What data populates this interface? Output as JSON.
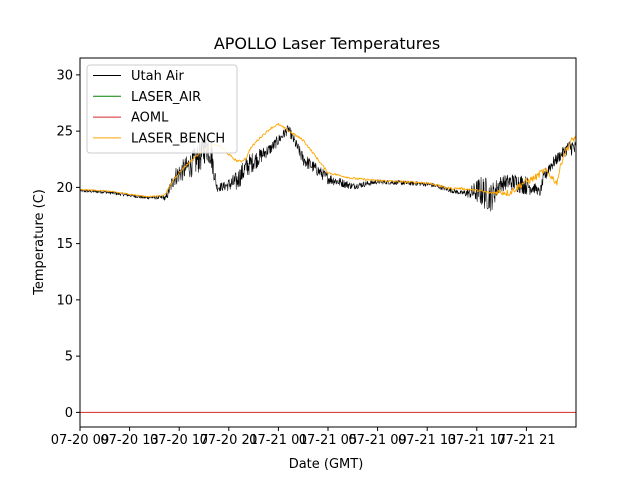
{
  "chart_data": {
    "type": "line",
    "title": "APOLLO Laser Temperatures",
    "xlabel": "Date (GMT)",
    "ylabel": "Temperature (C)",
    "ylim": [
      -1.3,
      31.5
    ],
    "xlim": [
      0,
      100
    ],
    "yticks": [
      0,
      5,
      10,
      15,
      20,
      25,
      30
    ],
    "x_tick_positions": [
      0,
      10,
      20,
      30,
      40,
      50,
      60,
      70,
      80,
      90
    ],
    "x_tick_labels": [
      "07-20 09",
      "07-20 13",
      "07-20 17",
      "07-20 21",
      "07-21 01",
      "07-21 05",
      "07-21 09",
      "07-21 13",
      "07-21 17",
      "07-21 21"
    ],
    "legend": [
      "Utah Air",
      "LASER_AIR",
      "AOML",
      "LASER_BENCH"
    ],
    "legend_position": "upper-left",
    "series": [
      {
        "name": "Utah Air",
        "color": "#000000",
        "noisy": true,
        "x": [
          0,
          5,
          10,
          13,
          15,
          16.9,
          17.3,
          19,
          21,
          23.5,
          24.5,
          25.4,
          26.3,
          27.6,
          29.2,
          31.5,
          33.7,
          35.6,
          37,
          38.6,
          40,
          42,
          45,
          50,
          55,
          60,
          65,
          70,
          72,
          73.5,
          75,
          76.9,
          78.6,
          80.6,
          81.7,
          82.9,
          84.6,
          86.5,
          88.5,
          90.5,
          91.9,
          92.7,
          93.5,
          94.6,
          96.1,
          97.4,
          98.3,
          99.2,
          100
        ],
        "y": [
          19.7,
          19.6,
          19.3,
          19.1,
          19.1,
          19.1,
          19,
          20.9,
          21.6,
          22.4,
          22.9,
          23.8,
          23.3,
          20,
          20.1,
          20.5,
          21.9,
          22.5,
          23,
          23.5,
          24.2,
          25.2,
          22.5,
          20.8,
          20.1,
          20.5,
          20.4,
          20.3,
          20.1,
          19.9,
          19.7,
          19.5,
          19.5,
          19.7,
          19.5,
          19.1,
          20.3,
          20.5,
          20.4,
          20.1,
          19.9,
          19.5,
          20.8,
          21.8,
          22.5,
          23.1,
          23.5,
          23.6,
          23.3
        ],
        "noise_amp": [
          0.15,
          0.15,
          0.15,
          0.15,
          0.15,
          0.2,
          0.3,
          0.8,
          1,
          1.3,
          1.4,
          1.5,
          1.5,
          0.4,
          0.4,
          0.9,
          1,
          0.8,
          0.6,
          0.5,
          0.5,
          0.4,
          0.6,
          0.5,
          0.3,
          0.2,
          0.2,
          0.2,
          0.2,
          0.2,
          0.2,
          0.2,
          0.5,
          1.3,
          1.5,
          1.3,
          0.7,
          0.7,
          0.9,
          0.8,
          0.4,
          0.4,
          0.6,
          0.6,
          0.5,
          0.5,
          0.6,
          0.8,
          0.8
        ]
      },
      {
        "name": "LASER_AIR",
        "color": "#008000",
        "noisy": false,
        "x": [],
        "y": []
      },
      {
        "name": "AOML",
        "color": "#d62728",
        "noisy": false,
        "x": [
          0,
          100
        ],
        "y": [
          0,
          0
        ]
      },
      {
        "name": "LASER_BENCH",
        "color": "#ffa500",
        "noisy": false,
        "x": [
          0,
          5,
          10,
          13,
          15,
          16.9,
          17.3,
          19,
          21,
          23,
          24.5,
          25.6,
          27.5,
          28.7,
          29.8,
          31.4,
          32.5,
          33.7,
          34.1,
          35.6,
          37,
          38.6,
          40,
          45,
          50,
          55,
          60,
          65,
          70,
          72,
          73.5,
          75,
          76.9,
          78.6,
          80.6,
          81.7,
          82.9,
          84.6,
          86.5,
          88.5,
          89.7,
          90.5,
          91.9,
          93.5,
          94.6,
          96.1,
          97.4,
          98.3,
          99.2,
          100
        ],
        "y": [
          19.8,
          19.7,
          19.4,
          19.2,
          19.2,
          19.3,
          19.5,
          20.8,
          21.8,
          22.6,
          23.2,
          23.5,
          23.8,
          23.5,
          23,
          22.4,
          22.3,
          22.7,
          23.3,
          24.1,
          24.7,
          25.3,
          25.6,
          24.2,
          21.3,
          20.8,
          20.6,
          20.5,
          20.4,
          20.2,
          20,
          19.9,
          19.9,
          19.8,
          19.7,
          19.6,
          19.5,
          19.6,
          19.5,
          20.1,
          20.5,
          20.6,
          20.9,
          21.5,
          21.2,
          20.4,
          22.8,
          23.5,
          24.2,
          24.5
        ],
        "noise_amp": [
          0.05,
          0.05,
          0.05,
          0.05,
          0.05,
          0.05,
          0.05,
          0.1,
          0.1,
          0.1,
          0.1,
          0.1,
          0.1,
          0.1,
          0.1,
          0.1,
          0.1,
          0.1,
          0.1,
          0.1,
          0.1,
          0.1,
          0.1,
          0.1,
          0.1,
          0.1,
          0.1,
          0.1,
          0.1,
          0.1,
          0.1,
          0.1,
          0.1,
          0.1,
          0.1,
          0.1,
          0.1,
          0.3,
          0.3,
          0.3,
          0.3,
          0.3,
          0.3,
          0.3,
          0.3,
          0.3,
          0.3,
          0.3,
          0.3,
          0.3
        ]
      }
    ]
  }
}
